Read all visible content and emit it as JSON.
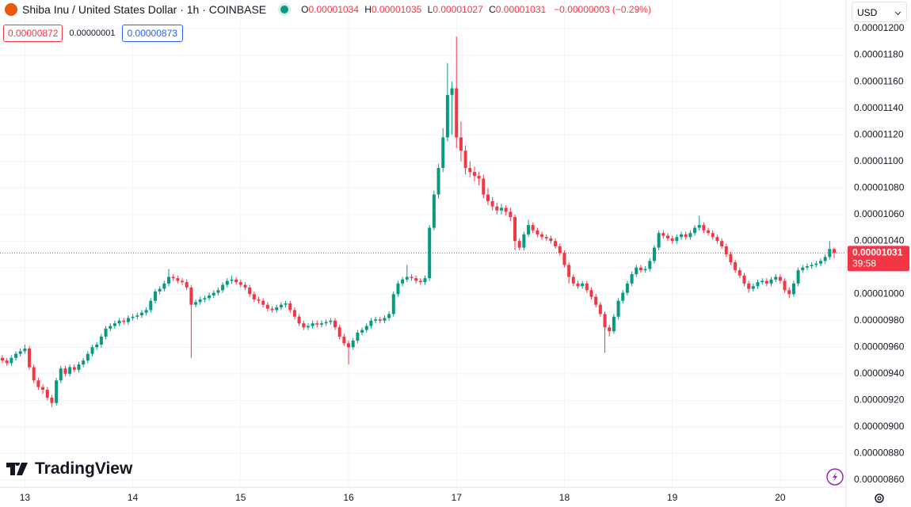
{
  "header": {
    "symbol": "Shiba Inu / United States Dollar · 1h · COINBASE",
    "ohlc": [
      {
        "label": "O",
        "value": "0.00001034"
      },
      {
        "label": "H",
        "value": "0.00001035"
      },
      {
        "label": "L",
        "value": "0.00001027"
      },
      {
        "label": "C",
        "value": "0.00001031"
      }
    ],
    "change": "−0.00000003 (−0.29%)",
    "sell": "0.00000872",
    "spread": "0.00000001",
    "buy": "0.00000873",
    "currency": "USD",
    "brand": "TradingView"
  },
  "chart_data": {
    "type": "candlestick",
    "up_color": "#089981",
    "down_color": "#f23645",
    "grid": true,
    "ylim": [
      8.546e-06,
      1.2215e-05
    ],
    "yticks": [
      {
        "value": 8.6e-06,
        "label": "0.00000860"
      },
      {
        "value": 8.8e-06,
        "label": "0.00000880"
      },
      {
        "value": 9e-06,
        "label": "0.00000900"
      },
      {
        "value": 9.2e-06,
        "label": "0.00000920"
      },
      {
        "value": 9.4e-06,
        "label": "0.00000940"
      },
      {
        "value": 9.6e-06,
        "label": "0.00000960"
      },
      {
        "value": 9.8e-06,
        "label": "0.00000980"
      },
      {
        "value": 1e-05,
        "label": "0.00001000"
      },
      {
        "value": 1.02e-05,
        "label": "0.00001020"
      },
      {
        "value": 1.04e-05,
        "label": "0.00001040"
      },
      {
        "value": 1.06e-05,
        "label": "0.00001060"
      },
      {
        "value": 1.08e-05,
        "label": "0.00001080"
      },
      {
        "value": 1.1e-05,
        "label": "0.00001100"
      },
      {
        "value": 1.12e-05,
        "label": "0.00001120"
      },
      {
        "value": 1.14e-05,
        "label": "0.00001140"
      },
      {
        "value": 1.16e-05,
        "label": "0.00001160"
      },
      {
        "value": 1.18e-05,
        "label": "0.00001180"
      },
      {
        "value": 1.2e-05,
        "label": "0.00001200"
      }
    ],
    "price_line": {
      "value": 1.031e-05,
      "label": "0.00001031"
    },
    "countdown": "39:58",
    "categories": [
      null,
      null,
      null,
      null,
      null,
      "13",
      null,
      null,
      null,
      null,
      null,
      null,
      null,
      null,
      null,
      null,
      null,
      null,
      null,
      null,
      null,
      null,
      null,
      null,
      null,
      null,
      null,
      null,
      null,
      "14",
      null,
      null,
      null,
      null,
      null,
      null,
      null,
      null,
      null,
      null,
      null,
      null,
      null,
      null,
      null,
      null,
      null,
      null,
      null,
      null,
      null,
      null,
      null,
      "15",
      null,
      null,
      null,
      null,
      null,
      null,
      null,
      null,
      null,
      null,
      null,
      null,
      null,
      null,
      null,
      null,
      null,
      null,
      null,
      null,
      null,
      null,
      null,
      "16",
      null,
      null,
      null,
      null,
      null,
      null,
      null,
      null,
      null,
      null,
      null,
      null,
      null,
      null,
      null,
      null,
      null,
      null,
      null,
      null,
      null,
      null,
      null,
      "17",
      null,
      null,
      null,
      null,
      null,
      null,
      null,
      null,
      null,
      null,
      null,
      null,
      null,
      null,
      null,
      null,
      null,
      null,
      null,
      null,
      null,
      null,
      null,
      "18",
      null,
      null,
      null,
      null,
      null,
      null,
      null,
      null,
      null,
      null,
      null,
      null,
      null,
      null,
      null,
      null,
      null,
      null,
      null,
      null,
      null,
      null,
      null,
      "19",
      null,
      null,
      null,
      null,
      null,
      null,
      null,
      null,
      null,
      null,
      null,
      null,
      null,
      null,
      null,
      null,
      null,
      null,
      null,
      null,
      null,
      null,
      null,
      "20",
      null,
      null,
      null,
      null,
      null,
      null,
      null,
      null,
      null,
      null,
      null,
      null
    ],
    "open": [
      9.52e-06,
      9.5e-06,
      9.48e-06,
      9.52e-06,
      9.55e-06,
      9.57e-06,
      9.59e-06,
      9.45e-06,
      9.35e-06,
      9.3e-06,
      9.28e-06,
      9.22e-06,
      9.18e-06,
      9.35e-06,
      9.44e-06,
      9.4e-06,
      9.45e-06,
      9.43e-06,
      9.47e-06,
      9.5e-06,
      9.55e-06,
      9.6e-06,
      9.62e-06,
      9.68e-06,
      9.74e-06,
      9.76e-06,
      9.78e-06,
      9.8e-06,
      9.79e-06,
      9.82e-06,
      9.83e-06,
      9.84e-06,
      9.86e-06,
      9.88e-06,
      9.95e-06,
      1.002e-05,
      1.004e-05,
      1.008e-05,
      1.013e-05,
      1.012e-05,
      1.01e-05,
      1.009e-05,
      1.005e-05,
      9.92e-06,
      9.94e-06,
      9.96e-06,
      9.97e-06,
      9.99e-06,
      1.001e-05,
      1.003e-05,
      1.007e-05,
      1.01e-05,
      1.011e-05,
      1.009e-05,
      1.007e-05,
      1.005e-05,
      1e-05,
      9.96e-06,
      9.95e-06,
      9.92e-06,
      9.89e-06,
      9.88e-06,
      9.9e-06,
      9.92e-06,
      9.93e-06,
      9.88e-06,
      9.83e-06,
      9.78e-06,
      9.75e-06,
      9.76e-06,
      9.78e-06,
      9.77e-06,
      9.78e-06,
      9.79e-06,
      9.8e-06,
      9.75e-06,
      9.68e-06,
      9.63e-06,
      9.6e-06,
      9.65e-06,
      9.71e-06,
      9.73e-06,
      9.76e-06,
      9.8e-06,
      9.81e-06,
      9.8e-06,
      9.82e-06,
      9.85e-06,
      1e-05,
      1.008e-05,
      1.011e-05,
      1.013e-05,
      1.012e-05,
      1.01e-05,
      1.009e-05,
      1.012e-05,
      1.05e-05,
      1.075e-05,
      1.095e-05,
      1.118e-05,
      1.15e-05,
      1.155e-05,
      1.118e-05,
      1.108e-05,
      1.095e-05,
      1.092e-05,
      1.089e-05,
      1.087e-05,
      1.075e-05,
      1.07e-05,
      1.066e-05,
      1.063e-05,
      1.065e-05,
      1.062e-05,
      1.058e-05,
      1.04e-05,
      1.035e-05,
      1.045e-05,
      1.052e-05,
      1.048e-05,
      1.045e-05,
      1.043e-05,
      1.042e-05,
      1.04e-05,
      1.036e-05,
      1.031e-05,
      1.022e-05,
      1.013e-05,
      1.008e-05,
      1.006e-05,
      1.008e-05,
      1.003e-05,
      9.98e-06,
      9.92e-06,
      9.85e-06,
      9.75e-06,
      9.72e-06,
      9.83e-06,
      9.95e-06,
      1.001e-05,
      1.008e-05,
      1.015e-05,
      1.02e-05,
      1.018e-05,
      1.019e-05,
      1.025e-05,
      1.035e-05,
      1.046e-05,
      1.044e-05,
      1.042e-05,
      1.04e-05,
      1.043e-05,
      1.045e-05,
      1.043e-05,
      1.046e-05,
      1.05e-05,
      1.052e-05,
      1.048e-05,
      1.046e-05,
      1.043e-05,
      1.04e-05,
      1.036e-05,
      1.03e-05,
      1.024e-05,
      1.018e-05,
      1.014e-05,
      1.008e-05,
      1.004e-05,
      1.006e-05,
      1.009e-05,
      1.01e-05,
      1.008e-05,
      1.011e-05,
      1.013e-05,
      1.01e-05,
      1.003e-05,
      1e-05,
      1.008e-05,
      1.018e-05,
      1.02e-05,
      1.021e-05,
      1.022e-05,
      1.023e-05,
      1.025e-05,
      1.028e-05,
      1.034e-05
    ],
    "high": [
      9.54e-06,
      9.52e-06,
      9.54e-06,
      9.57e-06,
      9.59e-06,
      9.62e-06,
      9.61e-06,
      9.47e-06,
      9.37e-06,
      9.32e-06,
      9.3e-06,
      9.24e-06,
      9.37e-06,
      9.46e-06,
      9.46e-06,
      9.47e-06,
      9.47e-06,
      9.49e-06,
      9.52e-06,
      9.57e-06,
      9.62e-06,
      9.64e-06,
      9.7e-06,
      9.76e-06,
      9.78e-06,
      9.8e-06,
      9.82e-06,
      9.82e-06,
      9.84e-06,
      9.85e-06,
      9.86e-06,
      9.88e-06,
      9.9e-06,
      9.97e-06,
      1.004e-05,
      1.006e-05,
      1.01e-05,
      1.019e-05,
      1.015e-05,
      1.014e-05,
      1.012e-05,
      1.011e-05,
      1.007e-05,
      9.96e-06,
      9.98e-06,
      9.99e-06,
      1.001e-05,
      1.003e-05,
      1.005e-05,
      1.009e-05,
      1.012e-05,
      1.014e-05,
      1.013e-05,
      1.011e-05,
      1.009e-05,
      1.007e-05,
      1.002e-05,
      9.98e-06,
      9.97e-06,
      9.94e-06,
      9.91e-06,
      9.92e-06,
      9.94e-06,
      9.95e-06,
      9.95e-06,
      9.9e-06,
      9.85e-06,
      9.8e-06,
      9.78e-06,
      9.8e-06,
      9.8e-06,
      9.8e-06,
      9.81e-06,
      9.82e-06,
      9.82e-06,
      9.77e-06,
      9.7e-06,
      9.65e-06,
      9.67e-06,
      9.73e-06,
      9.75e-06,
      9.78e-06,
      9.82e-06,
      9.83e-06,
      9.83e-06,
      9.84e-06,
      9.87e-06,
      1.002e-05,
      1.01e-05,
      1.013e-05,
      1.022e-05,
      1.015e-05,
      1.014e-05,
      1.012e-05,
      1.014e-05,
      1.052e-05,
      1.078e-05,
      1.098e-05,
      1.125e-05,
      1.174e-05,
      1.16e-05,
      1.194e-05,
      1.13e-05,
      1.112e-05,
      1.1e-05,
      1.096e-05,
      1.092e-05,
      1.09e-05,
      1.08e-05,
      1.073e-05,
      1.069e-05,
      1.068e-05,
      1.067e-05,
      1.065e-05,
      1.06e-05,
      1.042e-05,
      1.047e-05,
      1.056e-05,
      1.054e-05,
      1.05e-05,
      1.047e-05,
      1.045e-05,
      1.044e-05,
      1.042e-05,
      1.038e-05,
      1.033e-05,
      1.024e-05,
      1.015e-05,
      1.01e-05,
      1.01e-05,
      1.01e-05,
      1.005e-05,
      1e-05,
      9.94e-06,
      9.87e-06,
      9.77e-06,
      9.85e-06,
      9.97e-06,
      1.003e-05,
      1.01e-05,
      1.017e-05,
      1.022e-05,
      1.022e-05,
      1.021e-05,
      1.027e-05,
      1.037e-05,
      1.048e-05,
      1.048e-05,
      1.046e-05,
      1.044e-05,
      1.045e-05,
      1.047e-05,
      1.047e-05,
      1.048e-05,
      1.052e-05,
      1.059e-05,
      1.054e-05,
      1.05e-05,
      1.048e-05,
      1.045e-05,
      1.042e-05,
      1.038e-05,
      1.032e-05,
      1.026e-05,
      1.02e-05,
      1.016e-05,
      1.01e-05,
      1.008e-05,
      1.011e-05,
      1.012e-05,
      1.012e-05,
      1.013e-05,
      1.015e-05,
      1.015e-05,
      1.012e-05,
      1.005e-05,
      1.01e-05,
      1.02e-05,
      1.022e-05,
      1.023e-05,
      1.024e-05,
      1.025e-05,
      1.027e-05,
      1.03e-05,
      1.04e-05,
      1.035e-05
    ],
    "low": [
      9.48e-06,
      9.46e-06,
      9.46e-06,
      9.5e-06,
      9.53e-06,
      9.55e-06,
      9.43e-06,
      9.33e-06,
      9.28e-06,
      9.25e-06,
      9.2e-06,
      9.15e-06,
      9.16e-06,
      9.33e-06,
      9.38e-06,
      9.38e-06,
      9.41e-06,
      9.41e-06,
      9.45e-06,
      9.48e-06,
      9.53e-06,
      9.58e-06,
      9.6e-06,
      9.66e-06,
      9.72e-06,
      9.74e-06,
      9.76e-06,
      9.77e-06,
      9.77e-06,
      9.8e-06,
      9.81e-06,
      9.82e-06,
      9.84e-06,
      9.86e-06,
      9.93e-06,
      1e-05,
      1.002e-05,
      1.006e-05,
      1.01e-05,
      1.008e-05,
      1.007e-05,
      1.003e-05,
      9.52e-06,
      9.9e-06,
      9.92e-06,
      9.94e-06,
      9.95e-06,
      9.97e-06,
      9.99e-06,
      1.001e-05,
      1.005e-05,
      1.008e-05,
      1.007e-05,
      1.005e-05,
      1.003e-05,
      9.98e-06,
      9.94e-06,
      9.93e-06,
      9.9e-06,
      9.87e-06,
      9.86e-06,
      9.86e-06,
      9.88e-06,
      9.9e-06,
      9.86e-06,
      9.81e-06,
      9.76e-06,
      9.73e-06,
      9.73e-06,
      9.74e-06,
      9.75e-06,
      9.75e-06,
      9.76e-06,
      9.77e-06,
      9.73e-06,
      9.66e-06,
      9.61e-06,
      9.47e-06,
      9.58e-06,
      9.63e-06,
      9.69e-06,
      9.71e-06,
      9.74e-06,
      9.78e-06,
      9.78e-06,
      9.78e-06,
      9.8e-06,
      9.83e-06,
      9.98e-06,
      1.006e-05,
      1.009e-05,
      1.01e-05,
      1.008e-05,
      1.007e-05,
      1.007e-05,
      1.01e-05,
      1.048e-05,
      1.072e-05,
      1.092e-05,
      1.115e-05,
      1.12e-05,
      1.11e-05,
      1.1e-05,
      1.09e-05,
      1.088e-05,
      1.085e-05,
      1.082e-05,
      1.072e-05,
      1.067e-05,
      1.063e-05,
      1.06e-05,
      1.06e-05,
      1.059e-05,
      1.055e-05,
      1.033e-05,
      1.033e-05,
      1.033e-05,
      1.043e-05,
      1.046e-05,
      1.043e-05,
      1.041e-05,
      1.04e-05,
      1.038e-05,
      1.034e-05,
      1.029e-05,
      1.02e-05,
      1.008e-05,
      1.006e-05,
      1.004e-05,
      1.004e-05,
      1.001e-05,
      9.96e-06,
      9.9e-06,
      9.83e-06,
      9.56e-06,
      9.68e-06,
      9.7e-06,
      9.81e-06,
      9.93e-06,
      9.99e-06,
      1.006e-05,
      1.013e-05,
      1.016e-05,
      1.016e-05,
      1.017e-05,
      1.023e-05,
      1.033e-05,
      1.042e-05,
      1.04e-05,
      1.038e-05,
      1.038e-05,
      1.041e-05,
      1.041e-05,
      1.041e-05,
      1.044e-05,
      1.048e-05,
      1.046e-05,
      1.044e-05,
      1.041e-05,
      1.038e-05,
      1.034e-05,
      1.028e-05,
      1.022e-05,
      1.016e-05,
      1.012e-05,
      1.006e-05,
      1.001e-05,
      1.002e-05,
      1.004e-05,
      1.007e-05,
      1.006e-05,
      1.006e-05,
      1.009e-05,
      1.008e-05,
      1.001e-05,
      9.97e-06,
      9.98e-06,
      1.006e-05,
      1.016e-05,
      1.018e-05,
      1.019e-05,
      1.02e-05,
      1.021e-05,
      1.023e-05,
      1.026e-05,
      1.027e-05
    ],
    "close": [
      9.5e-06,
      9.48e-06,
      9.52e-06,
      9.55e-06,
      9.57e-06,
      9.59e-06,
      9.45e-06,
      9.35e-06,
      9.3e-06,
      9.28e-06,
      9.22e-06,
      9.18e-06,
      9.35e-06,
      9.44e-06,
      9.4e-06,
      9.45e-06,
      9.43e-06,
      9.47e-06,
      9.5e-06,
      9.55e-06,
      9.6e-06,
      9.62e-06,
      9.68e-06,
      9.74e-06,
      9.76e-06,
      9.78e-06,
      9.8e-06,
      9.79e-06,
      9.82e-06,
      9.83e-06,
      9.84e-06,
      9.86e-06,
      9.88e-06,
      9.95e-06,
      1.002e-05,
      1.004e-05,
      1.008e-05,
      1.013e-05,
      1.012e-05,
      1.01e-05,
      1.009e-05,
      1.005e-05,
      9.92e-06,
      9.94e-06,
      9.96e-06,
      9.97e-06,
      9.99e-06,
      1.001e-05,
      1.003e-05,
      1.007e-05,
      1.01e-05,
      1.011e-05,
      1.009e-05,
      1.007e-05,
      1.005e-05,
      1e-05,
      9.96e-06,
      9.95e-06,
      9.92e-06,
      9.89e-06,
      9.88e-06,
      9.9e-06,
      9.92e-06,
      9.93e-06,
      9.88e-06,
      9.83e-06,
      9.78e-06,
      9.75e-06,
      9.76e-06,
      9.78e-06,
      9.77e-06,
      9.78e-06,
      9.79e-06,
      9.8e-06,
      9.75e-06,
      9.68e-06,
      9.63e-06,
      9.6e-06,
      9.65e-06,
      9.71e-06,
      9.73e-06,
      9.76e-06,
      9.8e-06,
      9.81e-06,
      9.8e-06,
      9.82e-06,
      9.85e-06,
      1e-05,
      1.008e-05,
      1.011e-05,
      1.013e-05,
      1.012e-05,
      1.01e-05,
      1.009e-05,
      1.012e-05,
      1.05e-05,
      1.075e-05,
      1.095e-05,
      1.118e-05,
      1.15e-05,
      1.155e-05,
      1.118e-05,
      1.108e-05,
      1.095e-05,
      1.092e-05,
      1.089e-05,
      1.087e-05,
      1.075e-05,
      1.07e-05,
      1.066e-05,
      1.063e-05,
      1.065e-05,
      1.062e-05,
      1.058e-05,
      1.04e-05,
      1.035e-05,
      1.045e-05,
      1.052e-05,
      1.048e-05,
      1.045e-05,
      1.043e-05,
      1.042e-05,
      1.04e-05,
      1.036e-05,
      1.031e-05,
      1.022e-05,
      1.013e-05,
      1.008e-05,
      1.006e-05,
      1.008e-05,
      1.003e-05,
      9.98e-06,
      9.92e-06,
      9.85e-06,
      9.75e-06,
      9.72e-06,
      9.83e-06,
      9.95e-06,
      1.001e-05,
      1.008e-05,
      1.015e-05,
      1.02e-05,
      1.018e-05,
      1.019e-05,
      1.025e-05,
      1.035e-05,
      1.046e-05,
      1.044e-05,
      1.042e-05,
      1.04e-05,
      1.043e-05,
      1.045e-05,
      1.043e-05,
      1.046e-05,
      1.05e-05,
      1.052e-05,
      1.048e-05,
      1.046e-05,
      1.043e-05,
      1.04e-05,
      1.036e-05,
      1.03e-05,
      1.024e-05,
      1.018e-05,
      1.014e-05,
      1.008e-05,
      1.004e-05,
      1.006e-05,
      1.009e-05,
      1.01e-05,
      1.008e-05,
      1.011e-05,
      1.013e-05,
      1.01e-05,
      1.003e-05,
      1e-05,
      1.008e-05,
      1.018e-05,
      1.02e-05,
      1.021e-05,
      1.022e-05,
      1.023e-05,
      1.025e-05,
      1.028e-05,
      1.034e-05,
      1.031e-05
    ]
  }
}
